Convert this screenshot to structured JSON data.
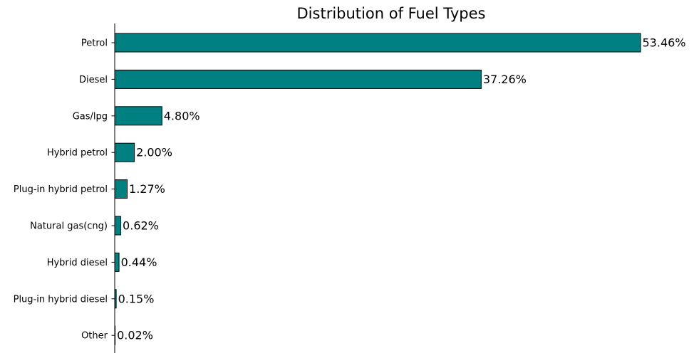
{
  "chart_data": {
    "type": "bar",
    "orientation": "horizontal",
    "title": "Distribution of Fuel Types",
    "xlabel": "",
    "ylabel": "",
    "categories": [
      "Petrol",
      "Diesel",
      "Gas/lpg",
      "Hybrid petrol",
      "Plug-in hybrid petrol",
      "Natural gas(cng)",
      "Hybrid diesel",
      "Plug-in hybrid diesel",
      "Other"
    ],
    "values": [
      53.46,
      37.26,
      4.8,
      2.0,
      1.27,
      0.62,
      0.44,
      0.15,
      0.02
    ],
    "value_labels": [
      "53.46%",
      "37.26%",
      "4.80%",
      "2.00%",
      "1.27%",
      "0.62%",
      "0.44%",
      "0.15%",
      "0.02%"
    ],
    "xlim": [
      0,
      53.46
    ],
    "grid": false,
    "bar_color": "#008080",
    "edge_color": "#000000"
  }
}
